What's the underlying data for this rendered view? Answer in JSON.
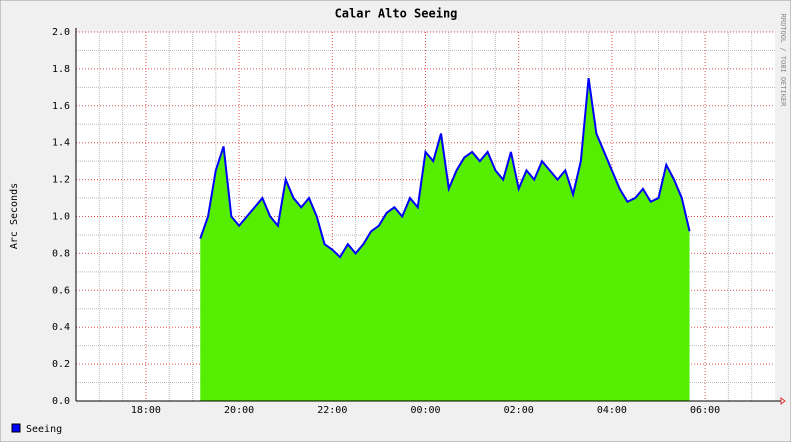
{
  "chart_data": {
    "type": "area",
    "title": "Calar Alto Seeing",
    "y_label": "Arc Seconds",
    "credit": "RRDTOOL / TOBI OETIKER",
    "x": [
      "19:10",
      "19:20",
      "19:30",
      "19:40",
      "19:50",
      "20:00",
      "20:10",
      "20:20",
      "20:30",
      "20:40",
      "20:50",
      "21:00",
      "21:10",
      "21:20",
      "21:30",
      "21:40",
      "21:50",
      "22:00",
      "22:10",
      "22:20",
      "22:30",
      "22:40",
      "22:50",
      "23:00",
      "23:10",
      "23:20",
      "23:30",
      "23:40",
      "23:50",
      "00:00",
      "00:10",
      "00:20",
      "00:30",
      "00:40",
      "00:50",
      "01:00",
      "01:10",
      "01:20",
      "01:30",
      "01:40",
      "01:50",
      "02:00",
      "02:10",
      "02:20",
      "02:30",
      "02:40",
      "02:50",
      "03:00",
      "03:10",
      "03:20",
      "03:30",
      "03:40",
      "03:50",
      "04:00",
      "04:10",
      "04:20",
      "04:30",
      "04:40",
      "04:50",
      "05:00",
      "05:10",
      "05:20",
      "05:30",
      "05:40"
    ],
    "series": [
      {
        "name": "Seeing",
        "color": "#0000ff",
        "fill": "#55ee00",
        "values": [
          0.88,
          1.0,
          1.25,
          1.38,
          1.0,
          0.95,
          1.0,
          1.05,
          1.1,
          1.0,
          0.95,
          1.2,
          1.1,
          1.05,
          1.1,
          1.0,
          0.85,
          0.82,
          0.78,
          0.85,
          0.8,
          0.85,
          0.92,
          0.95,
          1.02,
          1.05,
          1.0,
          1.1,
          1.05,
          1.35,
          1.3,
          1.45,
          1.15,
          1.25,
          1.32,
          1.35,
          1.3,
          1.35,
          1.25,
          1.2,
          1.35,
          1.15,
          1.25,
          1.2,
          1.3,
          1.25,
          1.2,
          1.25,
          1.12,
          1.3,
          1.75,
          1.45,
          1.35,
          1.25,
          1.15,
          1.08,
          1.1,
          1.15,
          1.08,
          1.1,
          1.28,
          1.2,
          1.1,
          0.92
        ]
      }
    ],
    "xlim": [
      "16:30",
      "07:30"
    ],
    "xticks": [
      "18:00",
      "20:00",
      "22:00",
      "00:00",
      "02:00",
      "04:00",
      "06:00"
    ],
    "x_minor_ticks": [
      "17:00",
      "17:30",
      "18:30",
      "19:00",
      "19:30",
      "20:30",
      "21:00",
      "21:30",
      "22:30",
      "23:00",
      "23:30",
      "00:30",
      "01:00",
      "01:30",
      "02:30",
      "03:00",
      "03:30",
      "04:30",
      "05:00",
      "05:30",
      "06:30",
      "07:00"
    ],
    "ylim": [
      0,
      2
    ],
    "yticks": [
      {
        "value": 0,
        "label": "0.0"
      },
      0.2,
      0.4,
      0.6,
      0.8,
      {
        "value": 1,
        "label": "1.0"
      },
      1.2,
      1.4,
      1.6,
      1.8,
      {
        "value": 2,
        "label": "2.0"
      }
    ],
    "y_minor_ticks": [
      0.1,
      0.3,
      0.5,
      0.7,
      0.9,
      1.1,
      1.3,
      1.5,
      1.7,
      1.9
    ],
    "grid": true,
    "legend": "bottom-left"
  }
}
